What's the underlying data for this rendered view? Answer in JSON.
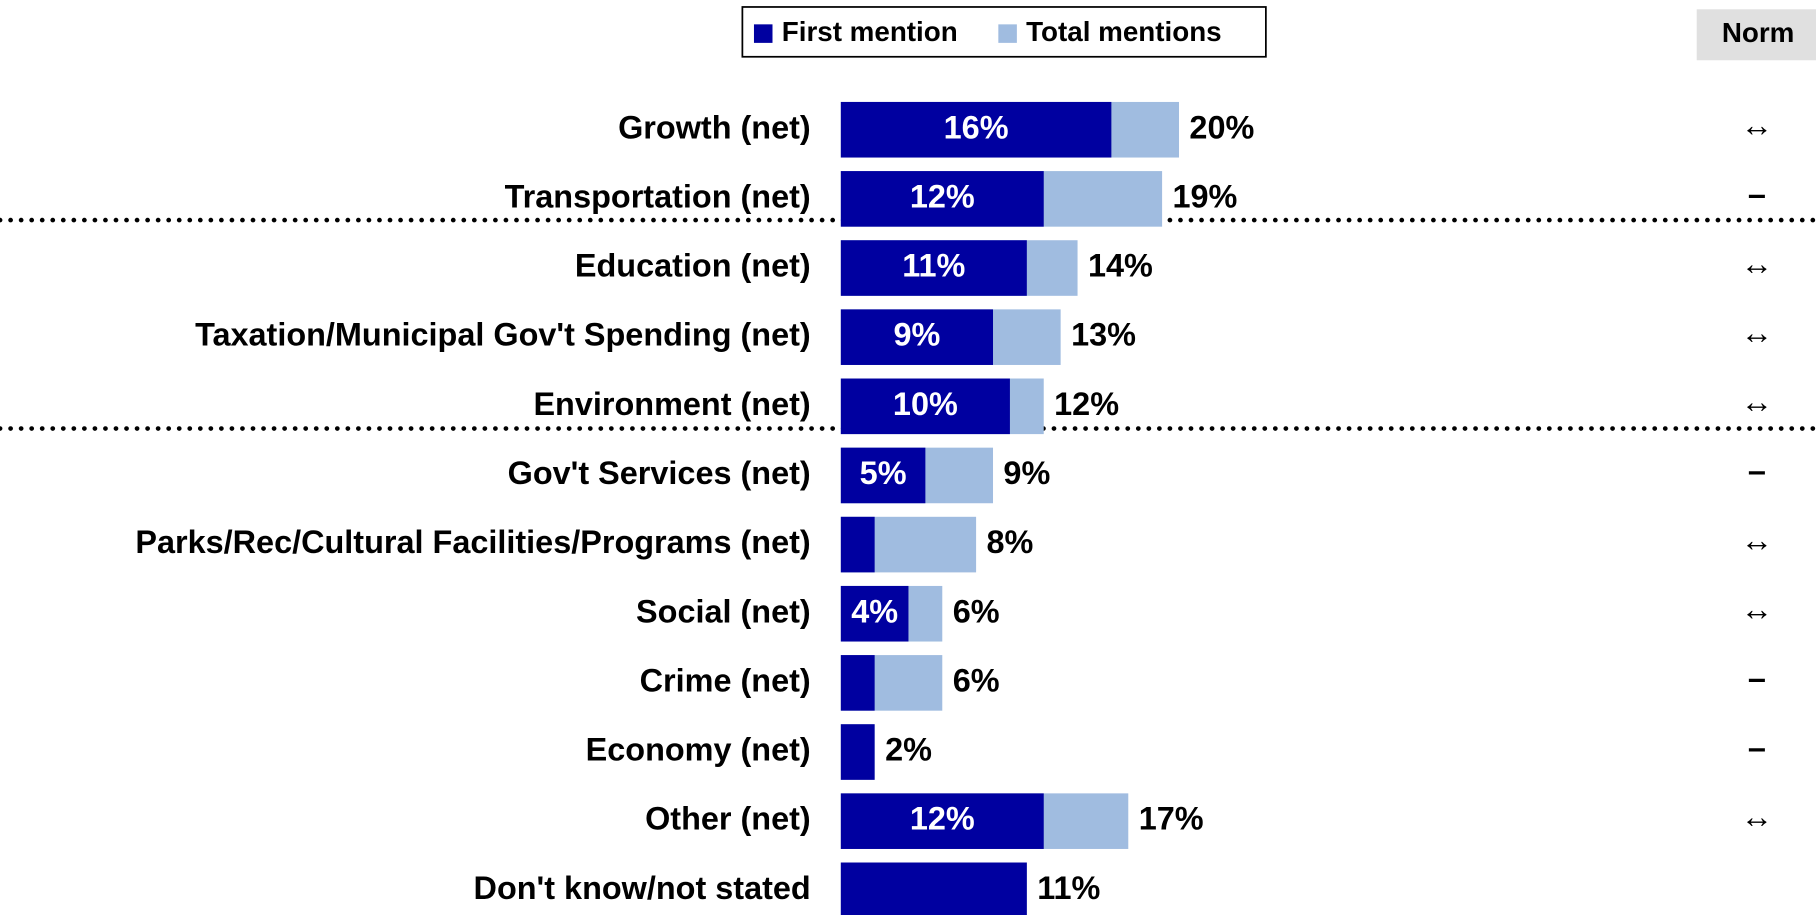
{
  "chart_data": {
    "type": "bar",
    "categories": [
      "Growth (net)",
      "Transportation (net)",
      "Education (net)",
      "Taxation/Municipal Gov't Spending (net)",
      "Environment (net)",
      "Gov't Services (net)",
      "Parks/Rec/Cultural Facilities/Programs (net)",
      "Social (net)",
      "Crime (net)",
      "Economy (net)",
      "Other (net)",
      "Don't know/not stated"
    ],
    "series": [
      {
        "name": "First mention",
        "color": "#0000a0",
        "values": [
          16,
          12,
          11,
          9,
          10,
          5,
          2,
          4,
          2,
          2,
          12,
          11
        ],
        "value_labels": [
          "16%",
          "12%",
          "11%",
          "9%",
          "10%",
          "5%",
          null,
          "4%",
          null,
          null,
          "12%",
          null
        ]
      },
      {
        "name": "Total mentions",
        "color": "#a0bce0",
        "values": [
          20,
          19,
          14,
          13,
          12,
          9,
          8,
          6,
          6,
          2,
          17,
          11
        ],
        "value_labels": [
          "20%",
          "19%",
          "14%",
          "13%",
          "12%",
          "9%",
          "8%",
          "6%",
          "6%",
          "2%",
          "17%",
          "11%"
        ]
      }
    ],
    "norm_header": "Norm",
    "norm": [
      "↔",
      "–",
      "↔",
      "↔",
      "↔",
      "–",
      "↔",
      "↔",
      "–",
      "–",
      "↔",
      null
    ]
  }
}
